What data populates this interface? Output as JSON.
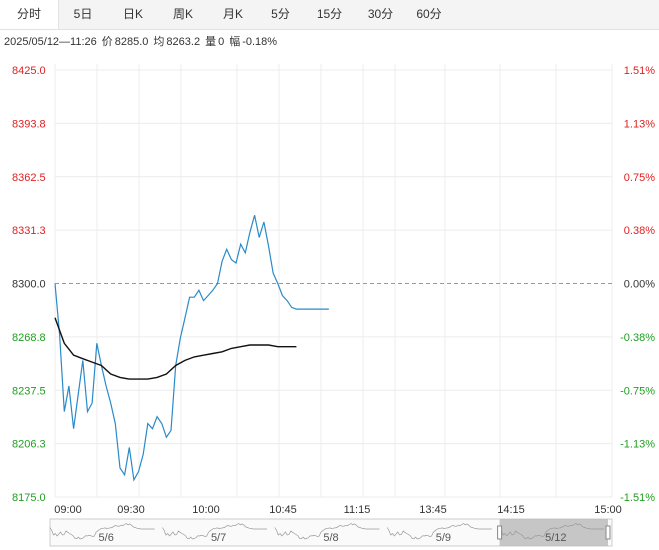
{
  "tabs": [
    {
      "label": "分时",
      "active": true
    },
    {
      "label": "5日",
      "active": false
    },
    {
      "label": "日K",
      "active": false
    },
    {
      "label": "周K",
      "active": false
    },
    {
      "label": "月K",
      "active": false
    },
    {
      "label": "5分",
      "active": false
    },
    {
      "label": "15分",
      "active": false
    },
    {
      "label": "30分",
      "active": false
    },
    {
      "label": "60分",
      "active": false
    }
  ],
  "info": {
    "datetime": "2025/05/12—11:26",
    "price_label": "价",
    "price": "8285.0",
    "avg_label": "均",
    "avg": "8263.2",
    "volume_label": "量",
    "volume": "0",
    "change_label": "幅",
    "change": "-0.18%"
  },
  "colors": {
    "up": "#e02020",
    "down": "#1f9f1f",
    "neutral": "#333333",
    "price_line": "#2a8ac8",
    "avg_line": "#111111",
    "grid": "#ececec",
    "baseline": "#999999"
  },
  "chart_data": {
    "type": "line",
    "ylim": [
      8175.0,
      8425.0
    ],
    "y_ticks_left": [
      "8425.0",
      "8393.8",
      "8362.5",
      "8331.3",
      "8300.0",
      "8268.8",
      "8237.5",
      "8206.3",
      "8175.0"
    ],
    "y_ticks_right": [
      "1.51%",
      "1.13%",
      "0.75%",
      "0.38%",
      "0.00%",
      "-0.38%",
      "-0.75%",
      "-1.13%",
      "-1.51%"
    ],
    "x_ticks": [
      "09:00",
      "09:30",
      "10:00",
      "10:45",
      "11:15",
      "13:45",
      "14:15",
      "15:00"
    ],
    "prev_close": 8300.0,
    "series": [
      {
        "name": "价",
        "x": [
          0,
          2,
          4,
          6,
          8,
          10,
          12,
          14,
          16,
          18,
          20,
          22,
          24,
          26,
          28,
          30,
          32,
          34,
          36,
          38,
          40,
          42,
          44,
          46,
          48,
          50,
          52,
          54,
          56,
          58,
          60,
          62,
          64,
          66,
          68,
          70,
          72,
          74,
          76,
          78,
          80,
          82,
          84,
          86,
          88,
          90,
          92,
          94,
          96,
          98,
          100,
          102,
          104,
          106,
          108,
          110,
          112,
          114,
          116,
          118
        ],
        "values": [
          8300,
          8270,
          8225,
          8240,
          8215,
          8235,
          8255,
          8225,
          8230,
          8265,
          8252,
          8240,
          8230,
          8218,
          8192,
          8188,
          8204,
          8185,
          8190,
          8200,
          8218,
          8215,
          8222,
          8218,
          8210,
          8214,
          8252,
          8268,
          8280,
          8292,
          8292,
          8296,
          8290,
          8293,
          8296,
          8300,
          8313,
          8320,
          8314,
          8312,
          8323,
          8318,
          8330,
          8340,
          8327,
          8336,
          8322,
          8306,
          8300,
          8293,
          8290,
          8286,
          8285,
          8285,
          8285,
          8285,
          8285,
          8285,
          8285,
          8285
        ]
      },
      {
        "name": "均",
        "x": [
          0,
          4,
          8,
          12,
          16,
          20,
          24,
          28,
          32,
          36,
          40,
          44,
          48,
          52,
          56,
          60,
          64,
          68,
          72,
          76,
          80,
          84,
          88,
          92,
          96,
          100,
          104
        ],
        "values": [
          8280,
          8265,
          8258,
          8256,
          8254,
          8252,
          8247,
          8245,
          8244,
          8244,
          8244,
          8245,
          8247,
          8252,
          8255,
          8257,
          8258,
          8259,
          8260,
          8262,
          8263,
          8264,
          8264,
          8264,
          8263,
          8263,
          8263
        ]
      }
    ],
    "navigator": {
      "dates": [
        "5/6",
        "5/7",
        "5/8",
        "5/9",
        "5/12"
      ],
      "selected": "5/12"
    }
  }
}
